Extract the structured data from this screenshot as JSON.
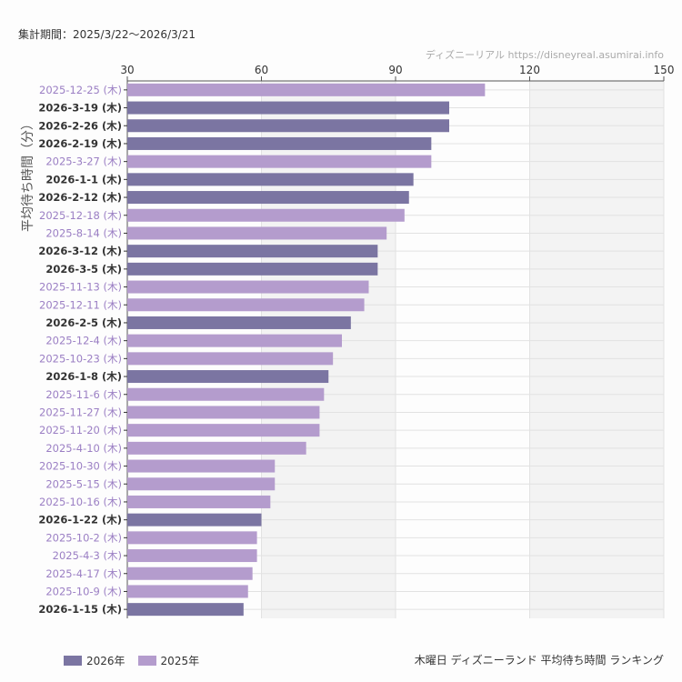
{
  "header": {
    "period": "集計期間：2025/3/22〜2026/3/21",
    "credit": "ディズニーリアル https://disneyreal.asumirai.info"
  },
  "footer": {
    "caption": "木曜日 ディズニーランド 平均待ち時間 ランキング"
  },
  "colors": {
    "2026": "#7b75a2",
    "2025": "#b49ccd",
    "label2026": "#333333",
    "label2025": "#9b7fc4"
  },
  "chart_data": {
    "type": "bar",
    "orientation": "horizontal",
    "ylabel": "平均待ち時間（分）",
    "xlim": [
      30,
      150
    ],
    "xticks": [
      30,
      60,
      90,
      120,
      150
    ],
    "grid": true,
    "legend_position": "bottom-left",
    "legend": [
      {
        "name": "2026年",
        "key": "2026"
      },
      {
        "name": "2025年",
        "key": "2025"
      }
    ],
    "categories": [
      "2025-12-25 (木)",
      "2026-3-19 (木)",
      "2026-2-26 (木)",
      "2026-2-19 (木)",
      "2025-3-27 (木)",
      "2026-1-1 (木)",
      "2026-2-12 (木)",
      "2025-12-18 (木)",
      "2025-8-14 (木)",
      "2026-3-12 (木)",
      "2026-3-5 (木)",
      "2025-11-13 (木)",
      "2025-12-11 (木)",
      "2026-2-5 (木)",
      "2025-12-4 (木)",
      "2025-10-23 (木)",
      "2026-1-8 (木)",
      "2025-11-6 (木)",
      "2025-11-27 (木)",
      "2025-11-20 (木)",
      "2025-4-10 (木)",
      "2025-10-30 (木)",
      "2025-5-15 (木)",
      "2025-10-16 (木)",
      "2026-1-22 (木)",
      "2025-10-2 (木)",
      "2025-4-3 (木)",
      "2025-4-17 (木)",
      "2025-10-9 (木)",
      "2026-1-15 (木)"
    ],
    "values": [
      110,
      102,
      102,
      98,
      98,
      94,
      93,
      92,
      88,
      86,
      86,
      84,
      83,
      80,
      78,
      76,
      75,
      74,
      73,
      73,
      70,
      63,
      63,
      62,
      60,
      59,
      59,
      58,
      57,
      56
    ],
    "year": [
      "2025",
      "2026",
      "2026",
      "2026",
      "2025",
      "2026",
      "2026",
      "2025",
      "2025",
      "2026",
      "2026",
      "2025",
      "2025",
      "2026",
      "2025",
      "2025",
      "2026",
      "2025",
      "2025",
      "2025",
      "2025",
      "2025",
      "2025",
      "2025",
      "2026",
      "2025",
      "2025",
      "2025",
      "2025",
      "2026"
    ]
  }
}
